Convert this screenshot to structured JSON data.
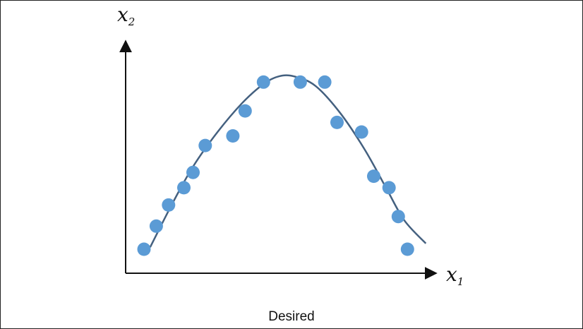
{
  "chart_data": {
    "type": "scatter",
    "title": "",
    "caption": "Desired",
    "xlabel": {
      "base": "x",
      "sub": "1"
    },
    "ylabel": {
      "base": "x",
      "sub": "2"
    },
    "xlim": [
      0,
      10
    ],
    "ylim": [
      0,
      10
    ],
    "grid": false,
    "legend": "none",
    "point_color": "#5b9bd5",
    "curve_color": "#44607f",
    "points": [
      {
        "x": 0.6,
        "y": 0.7
      },
      {
        "x": 1.0,
        "y": 1.9
      },
      {
        "x": 1.4,
        "y": 3.0
      },
      {
        "x": 1.9,
        "y": 3.9
      },
      {
        "x": 2.2,
        "y": 4.7
      },
      {
        "x": 2.6,
        "y": 6.1
      },
      {
        "x": 3.5,
        "y": 6.6
      },
      {
        "x": 3.9,
        "y": 7.9
      },
      {
        "x": 4.5,
        "y": 9.4
      },
      {
        "x": 5.7,
        "y": 9.4
      },
      {
        "x": 6.5,
        "y": 9.4
      },
      {
        "x": 6.9,
        "y": 7.3
      },
      {
        "x": 7.7,
        "y": 6.8
      },
      {
        "x": 8.1,
        "y": 4.5
      },
      {
        "x": 8.6,
        "y": 3.9
      },
      {
        "x": 8.9,
        "y": 2.4
      },
      {
        "x": 9.2,
        "y": 0.7
      }
    ],
    "curve": [
      {
        "x": 0.8,
        "y": 0.8
      },
      {
        "x": 1.5,
        "y": 3.0
      },
      {
        "x": 2.2,
        "y": 5.0
      },
      {
        "x": 3.0,
        "y": 6.8
      },
      {
        "x": 3.8,
        "y": 8.3
      },
      {
        "x": 4.5,
        "y": 9.3
      },
      {
        "x": 5.0,
        "y": 9.7
      },
      {
        "x": 5.5,
        "y": 9.7
      },
      {
        "x": 6.2,
        "y": 9.2
      },
      {
        "x": 7.0,
        "y": 7.8
      },
      {
        "x": 7.8,
        "y": 5.9
      },
      {
        "x": 8.5,
        "y": 3.9
      },
      {
        "x": 9.1,
        "y": 2.2
      },
      {
        "x": 9.8,
        "y": 1.0
      }
    ]
  }
}
